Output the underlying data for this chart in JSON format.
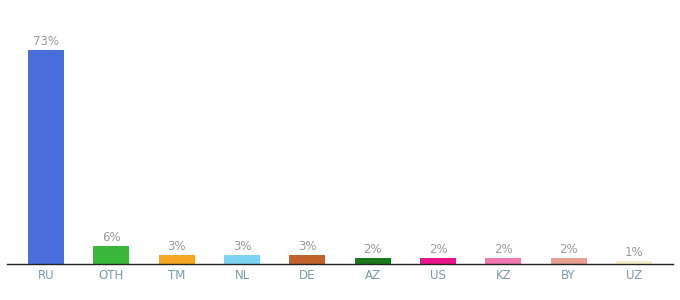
{
  "categories": [
    "RU",
    "OTH",
    "TM",
    "NL",
    "DE",
    "AZ",
    "US",
    "KZ",
    "BY",
    "UZ"
  ],
  "values": [
    73,
    6,
    3,
    3,
    3,
    2,
    2,
    2,
    2,
    1
  ],
  "colors": [
    "#4a6fdc",
    "#3ab83a",
    "#f5a623",
    "#7dd4f5",
    "#c0622a",
    "#1a7a1a",
    "#e8168a",
    "#f07ab0",
    "#e8a090",
    "#f5f0c8"
  ],
  "label_fontsize": 8.5,
  "tick_fontsize": 8.5,
  "label_color": "#999999",
  "tick_color": "#7799aa",
  "bg_color": "#ffffff",
  "ylim": [
    0,
    82
  ]
}
